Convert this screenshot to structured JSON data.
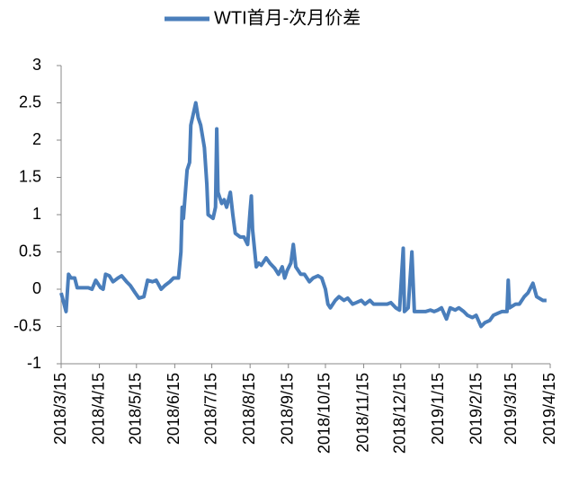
{
  "chart_data": {
    "type": "line",
    "x": [
      "2018/3/15",
      "2018/3/19",
      "2018/3/21",
      "2018/3/23",
      "2018/3/26",
      "2018/3/28",
      "2018/4/2",
      "2018/4/6",
      "2018/4/9",
      "2018/4/12",
      "2018/4/16",
      "2018/4/18",
      "2018/4/20",
      "2018/4/23",
      "2018/4/26",
      "2018/4/30",
      "2018/5/3",
      "2018/5/7",
      "2018/5/10",
      "2018/5/14",
      "2018/5/17",
      "2018/5/21",
      "2018/5/24",
      "2018/5/28",
      "2018/5/31",
      "2018/6/4",
      "2018/6/7",
      "2018/6/11",
      "2018/6/14",
      "2018/6/18",
      "2018/6/20",
      "2018/6/21",
      "2018/6/22",
      "2018/6/25",
      "2018/6/27",
      "2018/6/28",
      "2018/7/2",
      "2018/7/4",
      "2018/7/6",
      "2018/7/9",
      "2018/7/11",
      "2018/7/12",
      "2018/7/16",
      "2018/7/18",
      "2018/7/19",
      "2018/7/20",
      "2018/7/23",
      "2018/7/25",
      "2018/7/27",
      "2018/7/30",
      "2018/8/1",
      "2018/8/3",
      "2018/8/7",
      "2018/8/10",
      "2018/8/13",
      "2018/8/15",
      "2018/8/16",
      "2018/8/17",
      "2018/8/20",
      "2018/8/22",
      "2018/8/24",
      "2018/8/28",
      "2018/8/31",
      "2018/9/4",
      "2018/9/7",
      "2018/9/10",
      "2018/9/12",
      "2018/9/14",
      "2018/9/17",
      "2018/9/19",
      "2018/9/21",
      "2018/9/25",
      "2018/9/28",
      "2018/10/2",
      "2018/10/5",
      "2018/10/9",
      "2018/10/12",
      "2018/10/15",
      "2018/10/17",
      "2018/10/19",
      "2018/10/23",
      "2018/10/26",
      "2018/10/30",
      "2018/11/2",
      "2018/11/6",
      "2018/11/9",
      "2018/11/13",
      "2018/11/16",
      "2018/11/20",
      "2018/11/23",
      "2018/11/27",
      "2018/11/30",
      "2018/12/4",
      "2018/12/7",
      "2018/12/11",
      "2018/12/14",
      "2018/12/17",
      "2018/12/18",
      "2018/12/21",
      "2018/12/24",
      "2018/12/26",
      "2018/12/31",
      "2019/1/4",
      "2019/1/8",
      "2019/1/11",
      "2019/1/14",
      "2019/1/17",
      "2019/1/21",
      "2019/1/24",
      "2019/1/28",
      "2019/1/31",
      "2019/2/4",
      "2019/2/7",
      "2019/2/11",
      "2019/2/14",
      "2019/2/18",
      "2019/2/21",
      "2019/2/25",
      "2019/2/28",
      "2019/3/4",
      "2019/3/7",
      "2019/3/11",
      "2019/3/12",
      "2019/3/13",
      "2019/3/18",
      "2019/3/21",
      "2019/3/25",
      "2019/3/28",
      "2019/4/1",
      "2019/4/4",
      "2019/4/9",
      "2019/4/12"
    ],
    "series": [
      {
        "name": "WTI首月-次月价差",
        "color": "#4a7ebb",
        "values": [
          -0.05,
          -0.3,
          0.2,
          0.15,
          0.15,
          0.02,
          0.02,
          0.02,
          0.0,
          0.12,
          0.02,
          0.0,
          0.2,
          0.18,
          0.1,
          0.15,
          0.18,
          0.1,
          0.05,
          -0.05,
          -0.12,
          -0.1,
          0.12,
          0.1,
          0.12,
          0.0,
          0.05,
          0.1,
          0.15,
          0.15,
          0.5,
          1.1,
          0.95,
          1.6,
          1.7,
          2.2,
          2.5,
          2.3,
          2.2,
          1.9,
          1.4,
          1.0,
          0.95,
          1.1,
          2.15,
          1.3,
          1.15,
          1.2,
          1.1,
          1.3,
          1.0,
          0.75,
          0.7,
          0.7,
          0.6,
          1.05,
          1.25,
          0.8,
          0.3,
          0.35,
          0.32,
          0.42,
          0.35,
          0.28,
          0.2,
          0.3,
          0.15,
          0.25,
          0.35,
          0.6,
          0.3,
          0.2,
          0.2,
          0.1,
          0.15,
          0.18,
          0.15,
          0.0,
          -0.2,
          -0.25,
          -0.15,
          -0.1,
          -0.15,
          -0.12,
          -0.2,
          -0.18,
          -0.15,
          -0.2,
          -0.15,
          -0.2,
          -0.2,
          -0.2,
          -0.2,
          -0.18,
          -0.25,
          -0.28,
          0.55,
          -0.3,
          -0.25,
          0.5,
          -0.3,
          -0.3,
          -0.3,
          -0.28,
          -0.3,
          -0.28,
          -0.25,
          -0.4,
          -0.25,
          -0.28,
          -0.25,
          -0.3,
          -0.35,
          -0.38,
          -0.35,
          -0.5,
          -0.45,
          -0.42,
          -0.35,
          -0.32,
          -0.3,
          -0.3,
          0.12,
          -0.25,
          -0.2,
          -0.2,
          -0.1,
          -0.05,
          0.08,
          -0.1,
          -0.15,
          -0.15
        ]
      }
    ],
    "xlim": [
      "2018/3/15",
      "2019/4/15"
    ],
    "xticks": [
      "2018/3/15",
      "2018/4/15",
      "2018/5/15",
      "2018/6/15",
      "2018/7/15",
      "2018/8/15",
      "2018/9/15",
      "2018/10/15",
      "2018/11/15",
      "2018/12/15",
      "2019/1/15",
      "2019/2/15",
      "2019/3/15",
      "2019/4/15"
    ],
    "ylim": [
      -1,
      3
    ],
    "yticks": [
      -1,
      -0.5,
      0,
      0.5,
      1,
      1.5,
      2,
      2.5,
      3
    ],
    "legend": "top"
  }
}
